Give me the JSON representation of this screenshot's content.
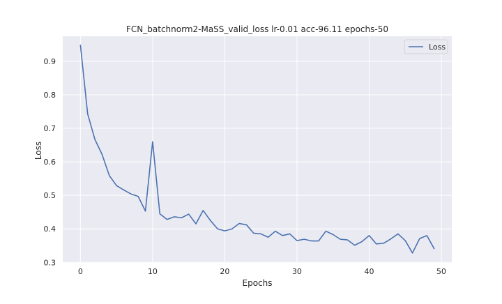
{
  "chart_data": {
    "type": "line",
    "title": "FCN_batchnorm2-MaSS_valid_loss lr-0.01 acc-96.11 epochs-50",
    "xlabel": "Epochs",
    "ylabel": "Loss",
    "xlim": [
      -2.45,
      51.45
    ],
    "ylim": [
      0.2985,
      0.9747
    ],
    "xticks": [
      0,
      10,
      20,
      30,
      40,
      50
    ],
    "yticks": [
      0.3,
      0.4,
      0.5,
      0.6,
      0.7,
      0.8,
      0.9
    ],
    "grid": true,
    "legend_position": "top-right",
    "colors": {
      "background": "#eaeaf2",
      "grid": "#ffffff",
      "series": "#4c72b0"
    },
    "series": [
      {
        "name": "Loss",
        "x": [
          0,
          1,
          2,
          3,
          4,
          5,
          6,
          7,
          8,
          9,
          10,
          11,
          12,
          13,
          14,
          15,
          16,
          17,
          18,
          19,
          20,
          21,
          22,
          23,
          24,
          25,
          26,
          27,
          28,
          29,
          30,
          31,
          32,
          33,
          34,
          35,
          36,
          37,
          38,
          39,
          40,
          41,
          42,
          43,
          44,
          45,
          46,
          47,
          48,
          49
        ],
        "values": [
          0.948,
          0.743,
          0.667,
          0.622,
          0.559,
          0.529,
          0.516,
          0.504,
          0.497,
          0.453,
          0.66,
          0.445,
          0.428,
          0.436,
          0.433,
          0.444,
          0.415,
          0.455,
          0.425,
          0.4,
          0.394,
          0.4,
          0.416,
          0.412,
          0.387,
          0.385,
          0.375,
          0.393,
          0.38,
          0.385,
          0.365,
          0.369,
          0.364,
          0.364,
          0.393,
          0.383,
          0.369,
          0.367,
          0.351,
          0.362,
          0.38,
          0.355,
          0.357,
          0.37,
          0.385,
          0.365,
          0.328,
          0.371,
          0.38,
          0.341
        ]
      }
    ]
  }
}
